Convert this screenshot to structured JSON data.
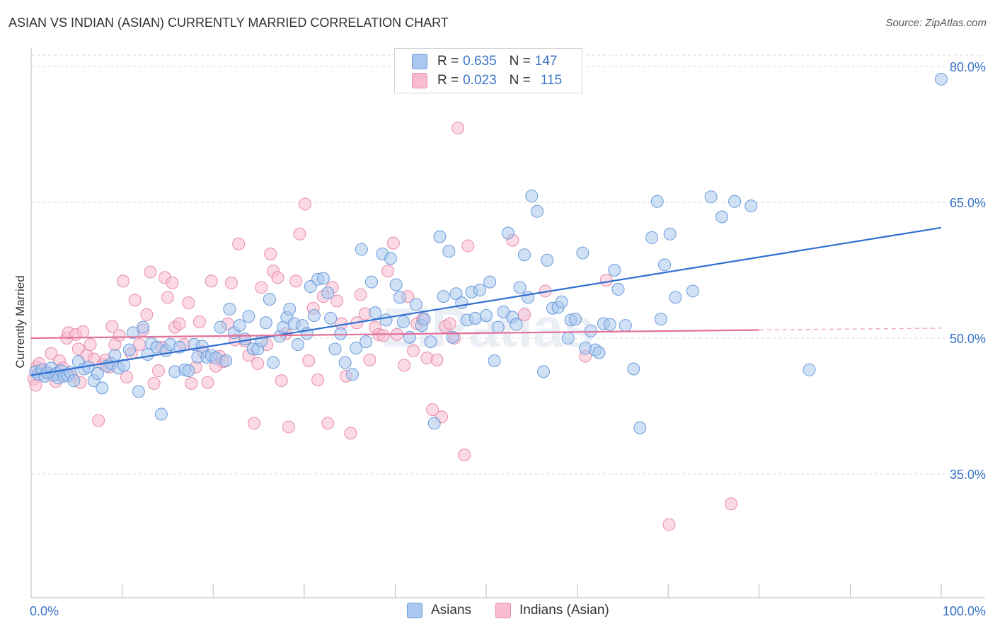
{
  "title": "ASIAN VS INDIAN (ASIAN) CURRENTLY MARRIED CORRELATION CHART",
  "source": "Source: ZipAtlas.com",
  "watermark": "ZIPatlas",
  "colors": {
    "asians_fill": "#aac8ef",
    "asians_stroke": "#6b9bdb",
    "asians_line": "#2f6fd0",
    "indians_fill": "#f7bcd0",
    "indians_stroke": "#e98bab",
    "indians_line": "#e46f98",
    "grid": "#d8d8d8",
    "tick_label": "#3a74c8"
  },
  "legend": {
    "r_label": "R =",
    "n_label": "N =",
    "asians": {
      "r": "0.635",
      "n": "147"
    },
    "indians": {
      "r": "0.023",
      "n": "115"
    }
  },
  "chart_data": {
    "type": "scatter",
    "title": "ASIAN VS INDIAN (ASIAN) CURRENTLY MARRIED CORRELATION CHART",
    "xlabel": "",
    "ylabel": "Currently Married",
    "xlim": [
      0,
      100
    ],
    "ylim": [
      20,
      82
    ],
    "x_tick_labels": [
      "0.0%",
      "100.0%"
    ],
    "y_ticks": [
      35,
      50,
      65,
      80
    ],
    "y_tick_labels": [
      "35.0%",
      "50.0%",
      "65.0%",
      "80.0%"
    ],
    "grid": true,
    "legend_position": "top-center",
    "series": [
      {
        "name": "Asians",
        "r": 0.635,
        "n": 147,
        "trend": {
          "x": [
            0,
            100
          ],
          "y": [
            45.9,
            62.2
          ],
          "style": "solid"
        },
        "points": [
          [
            0.5,
            46.3
          ],
          [
            0.8,
            46.0
          ],
          [
            1.2,
            46.5
          ],
          [
            1.5,
            45.8
          ],
          [
            1.8,
            46.2
          ],
          [
            2.2,
            46.7
          ],
          [
            2.5,
            45.9
          ],
          [
            2.8,
            46.1
          ],
          [
            3.0,
            45.6
          ],
          [
            3.3,
            46.4
          ],
          [
            3.6,
            45.8
          ],
          [
            4.0,
            45.9
          ],
          [
            4.3,
            46.2
          ],
          [
            4.7,
            45.3
          ],
          [
            5.2,
            47.4
          ],
          [
            5.8,
            46.6
          ],
          [
            6.3,
            46.8
          ],
          [
            6.9,
            45.3
          ],
          [
            7.3,
            46.1
          ],
          [
            7.8,
            44.5
          ],
          [
            8.3,
            46.9
          ],
          [
            8.8,
            47.2
          ],
          [
            9.2,
            48.1
          ],
          [
            9.6,
            46.7
          ],
          [
            10.2,
            47.0
          ],
          [
            10.8,
            48.7
          ],
          [
            11.2,
            50.6
          ],
          [
            11.8,
            44.1
          ],
          [
            12.3,
            51.2
          ],
          [
            12.8,
            48.2
          ],
          [
            13.2,
            49.4
          ],
          [
            13.8,
            49.0
          ],
          [
            14.3,
            41.6
          ],
          [
            14.8,
            48.6
          ],
          [
            15.3,
            49.3
          ],
          [
            15.8,
            46.3
          ],
          [
            16.3,
            49.0
          ],
          [
            16.9,
            46.5
          ],
          [
            17.3,
            46.4
          ],
          [
            17.9,
            49.3
          ],
          [
            18.3,
            47.9
          ],
          [
            18.8,
            49.1
          ],
          [
            19.3,
            47.9
          ],
          [
            19.8,
            48.1
          ],
          [
            20.3,
            47.8
          ],
          [
            20.8,
            51.2
          ],
          [
            21.4,
            47.5
          ],
          [
            21.8,
            53.2
          ],
          [
            22.3,
            50.6
          ],
          [
            22.9,
            51.4
          ],
          [
            23.5,
            49.9
          ],
          [
            23.9,
            52.4
          ],
          [
            24.4,
            48.8
          ],
          [
            24.9,
            48.8
          ],
          [
            25.3,
            49.7
          ],
          [
            25.8,
            51.7
          ],
          [
            26.2,
            54.3
          ],
          [
            26.6,
            47.3
          ],
          [
            27.3,
            50.2
          ],
          [
            27.7,
            51.2
          ],
          [
            28.1,
            52.3
          ],
          [
            28.4,
            53.2
          ],
          [
            28.9,
            51.6
          ],
          [
            29.3,
            49.3
          ],
          [
            29.8,
            51.4
          ],
          [
            30.3,
            50.5
          ],
          [
            30.7,
            55.7
          ],
          [
            31.1,
            52.5
          ],
          [
            31.5,
            56.5
          ],
          [
            32.1,
            56.6
          ],
          [
            32.6,
            55.0
          ],
          [
            32.9,
            52.2
          ],
          [
            33.4,
            48.8
          ],
          [
            34.0,
            50.5
          ],
          [
            34.5,
            47.3
          ],
          [
            35.3,
            46.0
          ],
          [
            35.7,
            48.9
          ],
          [
            36.3,
            59.8
          ],
          [
            36.8,
            49.6
          ],
          [
            37.4,
            56.2
          ],
          [
            37.8,
            52.8
          ],
          [
            38.6,
            59.3
          ],
          [
            39.0,
            52.0
          ],
          [
            39.5,
            58.8
          ],
          [
            40.1,
            55.9
          ],
          [
            40.5,
            54.5
          ],
          [
            40.9,
            51.8
          ],
          [
            41.6,
            50.1
          ],
          [
            42.3,
            53.7
          ],
          [
            42.9,
            51.4
          ],
          [
            43.2,
            52.1
          ],
          [
            43.9,
            49.6
          ],
          [
            44.3,
            40.6
          ],
          [
            44.9,
            61.2
          ],
          [
            45.3,
            54.6
          ],
          [
            45.9,
            59.6
          ],
          [
            46.3,
            50.1
          ],
          [
            46.7,
            54.9
          ],
          [
            47.3,
            53.9
          ],
          [
            47.9,
            52.0
          ],
          [
            48.4,
            55.1
          ],
          [
            48.8,
            52.2
          ],
          [
            49.3,
            55.3
          ],
          [
            50.0,
            52.5
          ],
          [
            50.4,
            56.2
          ],
          [
            50.9,
            47.5
          ],
          [
            51.3,
            51.2
          ],
          [
            51.9,
            52.9
          ],
          [
            52.4,
            61.6
          ],
          [
            52.9,
            52.3
          ],
          [
            53.3,
            51.5
          ],
          [
            53.7,
            55.6
          ],
          [
            54.2,
            59.2
          ],
          [
            54.6,
            54.5
          ],
          [
            55.0,
            65.7
          ],
          [
            55.6,
            64.0
          ],
          [
            56.3,
            46.3
          ],
          [
            56.7,
            58.6
          ],
          [
            57.3,
            53.3
          ],
          [
            57.9,
            53.4
          ],
          [
            58.3,
            54.0
          ],
          [
            59.0,
            50.0
          ],
          [
            59.3,
            52.0
          ],
          [
            59.8,
            52.1
          ],
          [
            60.6,
            59.4
          ],
          [
            60.9,
            48.9
          ],
          [
            61.5,
            50.8
          ],
          [
            62.0,
            48.7
          ],
          [
            62.4,
            48.4
          ],
          [
            62.9,
            51.6
          ],
          [
            63.6,
            51.5
          ],
          [
            64.1,
            57.5
          ],
          [
            64.5,
            55.4
          ],
          [
            65.3,
            51.4
          ],
          [
            66.2,
            46.6
          ],
          [
            66.9,
            40.1
          ],
          [
            68.2,
            61.1
          ],
          [
            68.8,
            65.1
          ],
          [
            69.2,
            52.1
          ],
          [
            69.6,
            58.1
          ],
          [
            70.2,
            61.5
          ],
          [
            70.8,
            54.5
          ],
          [
            72.7,
            55.2
          ],
          [
            74.7,
            65.6
          ],
          [
            75.9,
            63.4
          ],
          [
            77.3,
            65.1
          ],
          [
            79.1,
            64.6
          ],
          [
            85.5,
            46.5
          ],
          [
            100.0,
            78.6
          ]
        ]
      },
      {
        "name": "Indians (Asian)",
        "r": 0.023,
        "n": 115,
        "trend": {
          "x": [
            0,
            80
          ],
          "y": [
            50.0,
            50.9
          ],
          "style": "solid",
          "dashed_to": {
            "x": 100,
            "y": 51.1
          }
        },
        "points": [
          [
            0.3,
            45.5
          ],
          [
            0.6,
            46.8
          ],
          [
            0.9,
            47.2
          ],
          [
            1.3,
            46.5
          ],
          [
            1.8,
            46.1
          ],
          [
            2.2,
            48.3
          ],
          [
            2.7,
            45.2
          ],
          [
            3.1,
            47.5
          ],
          [
            3.5,
            46.7
          ],
          [
            3.9,
            50.0
          ],
          [
            4.1,
            50.6
          ],
          [
            4.5,
            45.8
          ],
          [
            4.9,
            50.4
          ],
          [
            5.2,
            48.8
          ],
          [
            5.4,
            45.1
          ],
          [
            5.7,
            50.7
          ],
          [
            6.1,
            48.1
          ],
          [
            6.5,
            49.3
          ],
          [
            6.9,
            47.7
          ],
          [
            7.4,
            40.9
          ],
          [
            7.9,
            47.1
          ],
          [
            8.2,
            47.6
          ],
          [
            8.6,
            46.8
          ],
          [
            8.9,
            51.3
          ],
          [
            9.2,
            49.3
          ],
          [
            9.7,
            50.3
          ],
          [
            10.1,
            56.3
          ],
          [
            10.5,
            45.7
          ],
          [
            11.0,
            48.3
          ],
          [
            11.4,
            54.2
          ],
          [
            11.9,
            49.3
          ],
          [
            12.3,
            50.9
          ],
          [
            12.7,
            52.6
          ],
          [
            13.1,
            57.3
          ],
          [
            13.5,
            45.0
          ],
          [
            14.0,
            46.4
          ],
          [
            14.4,
            49.0
          ],
          [
            14.7,
            56.7
          ],
          [
            15.0,
            54.5
          ],
          [
            15.5,
            56.1
          ],
          [
            15.8,
            51.2
          ],
          [
            16.3,
            51.6
          ],
          [
            16.8,
            49.3
          ],
          [
            17.3,
            53.9
          ],
          [
            17.6,
            45.0
          ],
          [
            18.1,
            46.8
          ],
          [
            18.5,
            51.8
          ],
          [
            18.9,
            48.5
          ],
          [
            19.4,
            45.1
          ],
          [
            19.8,
            56.3
          ],
          [
            20.3,
            46.9
          ],
          [
            20.7,
            48.0
          ],
          [
            21.1,
            47.4
          ],
          [
            21.6,
            51.6
          ],
          [
            22.0,
            56.1
          ],
          [
            22.4,
            49.8
          ],
          [
            22.8,
            60.4
          ],
          [
            23.5,
            49.7
          ],
          [
            23.9,
            48.1
          ],
          [
            24.5,
            40.6
          ],
          [
            24.9,
            47.2
          ],
          [
            25.3,
            55.6
          ],
          [
            25.9,
            49.3
          ],
          [
            26.3,
            59.3
          ],
          [
            26.6,
            57.4
          ],
          [
            27.1,
            56.7
          ],
          [
            27.5,
            45.3
          ],
          [
            28.0,
            50.5
          ],
          [
            28.3,
            40.2
          ],
          [
            29.1,
            56.3
          ],
          [
            29.5,
            61.5
          ],
          [
            30.1,
            64.8
          ],
          [
            30.5,
            47.5
          ],
          [
            31.0,
            53.3
          ],
          [
            31.5,
            45.4
          ],
          [
            32.1,
            54.6
          ],
          [
            32.6,
            40.6
          ],
          [
            33.1,
            55.6
          ],
          [
            33.6,
            54.1
          ],
          [
            34.1,
            51.6
          ],
          [
            34.6,
            45.8
          ],
          [
            35.1,
            39.5
          ],
          [
            35.8,
            51.7
          ],
          [
            36.2,
            54.8
          ],
          [
            36.7,
            52.7
          ],
          [
            37.2,
            47.6
          ],
          [
            37.8,
            51.2
          ],
          [
            38.2,
            50.4
          ],
          [
            38.7,
            50.3
          ],
          [
            39.2,
            57.4
          ],
          [
            39.8,
            60.5
          ],
          [
            40.2,
            50.4
          ],
          [
            41.0,
            47.0
          ],
          [
            41.4,
            54.6
          ],
          [
            42.0,
            48.6
          ],
          [
            42.4,
            51.6
          ],
          [
            43.0,
            52.1
          ],
          [
            43.5,
            47.8
          ],
          [
            44.1,
            42.1
          ],
          [
            44.6,
            47.6
          ],
          [
            45.1,
            41.3
          ],
          [
            45.5,
            51.3
          ],
          [
            46.0,
            51.6
          ],
          [
            46.5,
            50.0
          ],
          [
            46.9,
            73.2
          ],
          [
            47.6,
            37.1
          ],
          [
            48.0,
            60.2
          ],
          [
            52.9,
            60.8
          ],
          [
            54.2,
            52.6
          ],
          [
            56.5,
            55.2
          ],
          [
            60.9,
            48.0
          ],
          [
            63.2,
            56.4
          ],
          [
            70.1,
            29.4
          ],
          [
            76.9,
            31.7
          ],
          [
            0.5,
            44.8
          ]
        ]
      }
    ]
  },
  "bottom_legend": {
    "asians_label": "Asians",
    "indians_label": "Indians (Asian)"
  }
}
